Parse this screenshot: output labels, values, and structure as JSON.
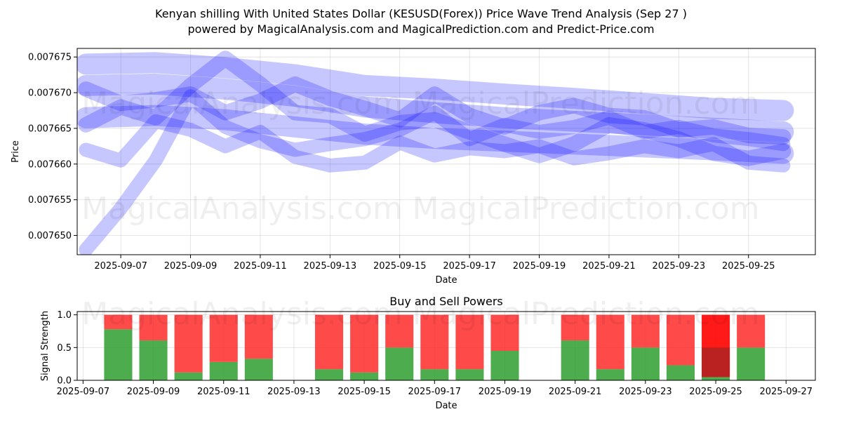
{
  "header": {
    "title_line1": "Kenyan shilling With United States Dollar (KESUSD(Forex)) Price Wave Trend Analysis (Sep 27 )",
    "title_line2": "powered by MagicalAnalysis.com and MagicalPrediction.com and Predict-Price.com"
  },
  "watermarks": {
    "left": "MagicalAnalysis.com",
    "right": "MagicalPrediction.com"
  },
  "colors": {
    "wave": "#0000ff",
    "buy": "#2e9e2e",
    "sell": "#ff2a2a",
    "sell_strong": "#ff0000",
    "buy_strong": "#b22222"
  },
  "chart_data": [
    {
      "type": "line",
      "title": "",
      "xlabel": "Date",
      "ylabel": "Price",
      "x_ticks": [
        "2025-09-07",
        "2025-09-09",
        "2025-09-11",
        "2025-09-13",
        "2025-09-15",
        "2025-09-17",
        "2025-09-19",
        "2025-09-21",
        "2025-09-23",
        "2025-09-25"
      ],
      "y_ticks": [
        "0.007650",
        "0.007655",
        "0.007660",
        "0.007665",
        "0.007670",
        "0.007675"
      ],
      "xlim": [
        "2025-09-05T18:00",
        "2025-09-26T22:00"
      ],
      "ylim": [
        0.0076473,
        0.0076762
      ],
      "grid": true,
      "series": [
        {
          "x": [
            "2025-09-06",
            "2025-09-08",
            "2025-09-10",
            "2025-09-12",
            "2025-09-14",
            "2025-09-16",
            "2025-09-18",
            "2025-09-20",
            "2025-09-22",
            "2025-09-24",
            "2025-09-26"
          ],
          "values": [
            0.007674,
            0.0076742,
            0.0076735,
            0.0076725,
            0.007671,
            0.0076705,
            0.0076698,
            0.0076692,
            0.0076685,
            0.0076678,
            0.0076675
          ]
        },
        {
          "x": [
            "2025-09-06",
            "2025-09-08",
            "2025-09-10",
            "2025-09-12",
            "2025-09-14",
            "2025-09-16",
            "2025-09-18",
            "2025-09-20",
            "2025-09-22",
            "2025-09-24",
            "2025-09-26"
          ],
          "values": [
            0.007671,
            0.0076712,
            0.0076705,
            0.0076695,
            0.007668,
            0.0076672,
            0.0076665,
            0.007666,
            0.0076655,
            0.007665,
            0.0076645
          ]
        },
        {
          "x": [
            "2025-09-06",
            "2025-09-08",
            "2025-09-10",
            "2025-09-12",
            "2025-09-14",
            "2025-09-16",
            "2025-09-18",
            "2025-09-20",
            "2025-09-22",
            "2025-09-24",
            "2025-09-26"
          ],
          "values": [
            0.0076665,
            0.0076668,
            0.0076662,
            0.0076652,
            0.0076642,
            0.0076636,
            0.0076632,
            0.0076628,
            0.0076624,
            0.007662,
            0.0076615
          ]
        },
        {
          "x": [
            "2025-09-06",
            "2025-09-07",
            "2025-09-08",
            "2025-09-09",
            "2025-09-10",
            "2025-09-11",
            "2025-09-12",
            "2025-09-13",
            "2025-09-14",
            "2025-09-15",
            "2025-09-16",
            "2025-09-17",
            "2025-09-18",
            "2025-09-19",
            "2025-09-20",
            "2025-09-21",
            "2025-09-22",
            "2025-09-23",
            "2025-09-24",
            "2025-09-25",
            "2025-09-26"
          ],
          "values": [
            0.0076705,
            0.0076685,
            0.007669,
            0.0076698,
            0.0076672,
            0.0076688,
            0.0076712,
            0.0076692,
            0.0076678,
            0.0076662,
            0.0076698,
            0.0076668,
            0.0076652,
            0.0076672,
            0.0076682,
            0.0076668,
            0.0076665,
            0.0076648,
            0.0076652,
            0.007664,
            0.0076638
          ]
        },
        {
          "x": [
            "2025-09-06",
            "2025-09-07",
            "2025-09-08",
            "2025-09-09",
            "2025-09-10",
            "2025-09-11",
            "2025-09-12",
            "2025-09-13",
            "2025-09-14",
            "2025-09-15",
            "2025-09-16",
            "2025-09-17",
            "2025-09-18",
            "2025-09-19",
            "2025-09-20",
            "2025-09-21",
            "2025-09-22",
            "2025-09-23",
            "2025-09-24",
            "2025-09-25",
            "2025-09-26"
          ],
          "values": [
            0.0076655,
            0.007668,
            0.0076665,
            0.007671,
            0.0076748,
            0.0076712,
            0.0076672,
            0.0076668,
            0.0076642,
            0.0076658,
            0.0076662,
            0.0076645,
            0.0076628,
            0.0076612,
            0.0076628,
            0.0076655,
            0.0076648,
            0.0076635,
            0.0076615,
            0.0076608,
            0.0076618
          ]
        },
        {
          "x": [
            "2025-09-06",
            "2025-09-07",
            "2025-09-08",
            "2025-09-09",
            "2025-09-10",
            "2025-09-11",
            "2025-09-12",
            "2025-09-13",
            "2025-09-14",
            "2025-09-15",
            "2025-09-16",
            "2025-09-17",
            "2025-09-18",
            "2025-09-19",
            "2025-09-20",
            "2025-09-21",
            "2025-09-22",
            "2025-09-23",
            "2025-09-24",
            "2025-09-25",
            "2025-09-26"
          ],
          "values": [
            0.007662,
            0.0076605,
            0.007666,
            0.0076648,
            0.0076625,
            0.0076645,
            0.007661,
            0.0076598,
            0.0076602,
            0.007663,
            0.0076612,
            0.0076622,
            0.0076618,
            0.0076625,
            0.0076608,
            0.0076615,
            0.0076625,
            0.0076618,
            0.0076628,
            0.0076602,
            0.0076598
          ]
        },
        {
          "x": [
            "2025-09-06",
            "2025-09-07",
            "2025-09-08",
            "2025-09-09",
            "2025-09-10",
            "2025-09-11",
            "2025-09-12",
            "2025-09-13",
            "2025-09-14",
            "2025-09-15",
            "2025-09-16",
            "2025-09-17",
            "2025-09-18",
            "2025-09-19",
            "2025-09-20",
            "2025-09-21",
            "2025-09-22",
            "2025-09-23",
            "2025-09-24",
            "2025-09-25",
            "2025-09-26"
          ],
          "values": [
            0.007648,
            0.0076538,
            0.0076605,
            0.0076695,
            0.0076652,
            0.0076632,
            0.007662,
            0.0076628,
            0.0076635,
            0.0076648,
            0.0076672,
            0.0076635,
            0.0076655,
            0.0076645,
            0.0076652,
            0.0076665,
            0.0076645,
            0.0076652,
            0.007664,
            0.0076635,
            0.0076628
          ]
        }
      ]
    },
    {
      "type": "bar",
      "title": "Buy and Sell Powers",
      "xlabel": "Date",
      "ylabel": "Signal Strength",
      "x_ticks": [
        "2025-09-07",
        "2025-09-09",
        "2025-09-11",
        "2025-09-13",
        "2025-09-15",
        "2025-09-17",
        "2025-09-19",
        "2025-09-21",
        "2025-09-23",
        "2025-09-25",
        "2025-09-27"
      ],
      "y_ticks": [
        "0.0",
        "0.5",
        "1.0"
      ],
      "xlim": [
        "2025-09-06T20:00",
        "2025-09-27T20:00"
      ],
      "ylim": [
        0,
        1.05
      ],
      "grid": true,
      "categories": [
        "2025-09-08",
        "2025-09-09",
        "2025-09-10",
        "2025-09-11",
        "2025-09-12",
        "2025-09-14",
        "2025-09-15",
        "2025-09-16",
        "2025-09-17",
        "2025-09-18",
        "2025-09-19",
        "2025-09-21",
        "2025-09-22",
        "2025-09-23",
        "2025-09-24",
        "2025-09-25",
        "2025-09-26"
      ],
      "series": [
        {
          "values": [
            0.78,
            0.61,
            0.12,
            0.28,
            0.33,
            0.17,
            0.12,
            0.5,
            0.17,
            0.17,
            0.45,
            0.61,
            0.17,
            0.5,
            0.23,
            0.05,
            0.5
          ]
        },
        {
          "values": [
            0.22,
            0.39,
            0.88,
            0.72,
            0.67,
            0.83,
            0.88,
            0.5,
            0.83,
            0.83,
            0.55,
            0.39,
            0.83,
            0.5,
            0.77,
            0.95,
            0.5
          ]
        }
      ],
      "strong_signal_dates": [
        "2025-09-25"
      ]
    }
  ]
}
